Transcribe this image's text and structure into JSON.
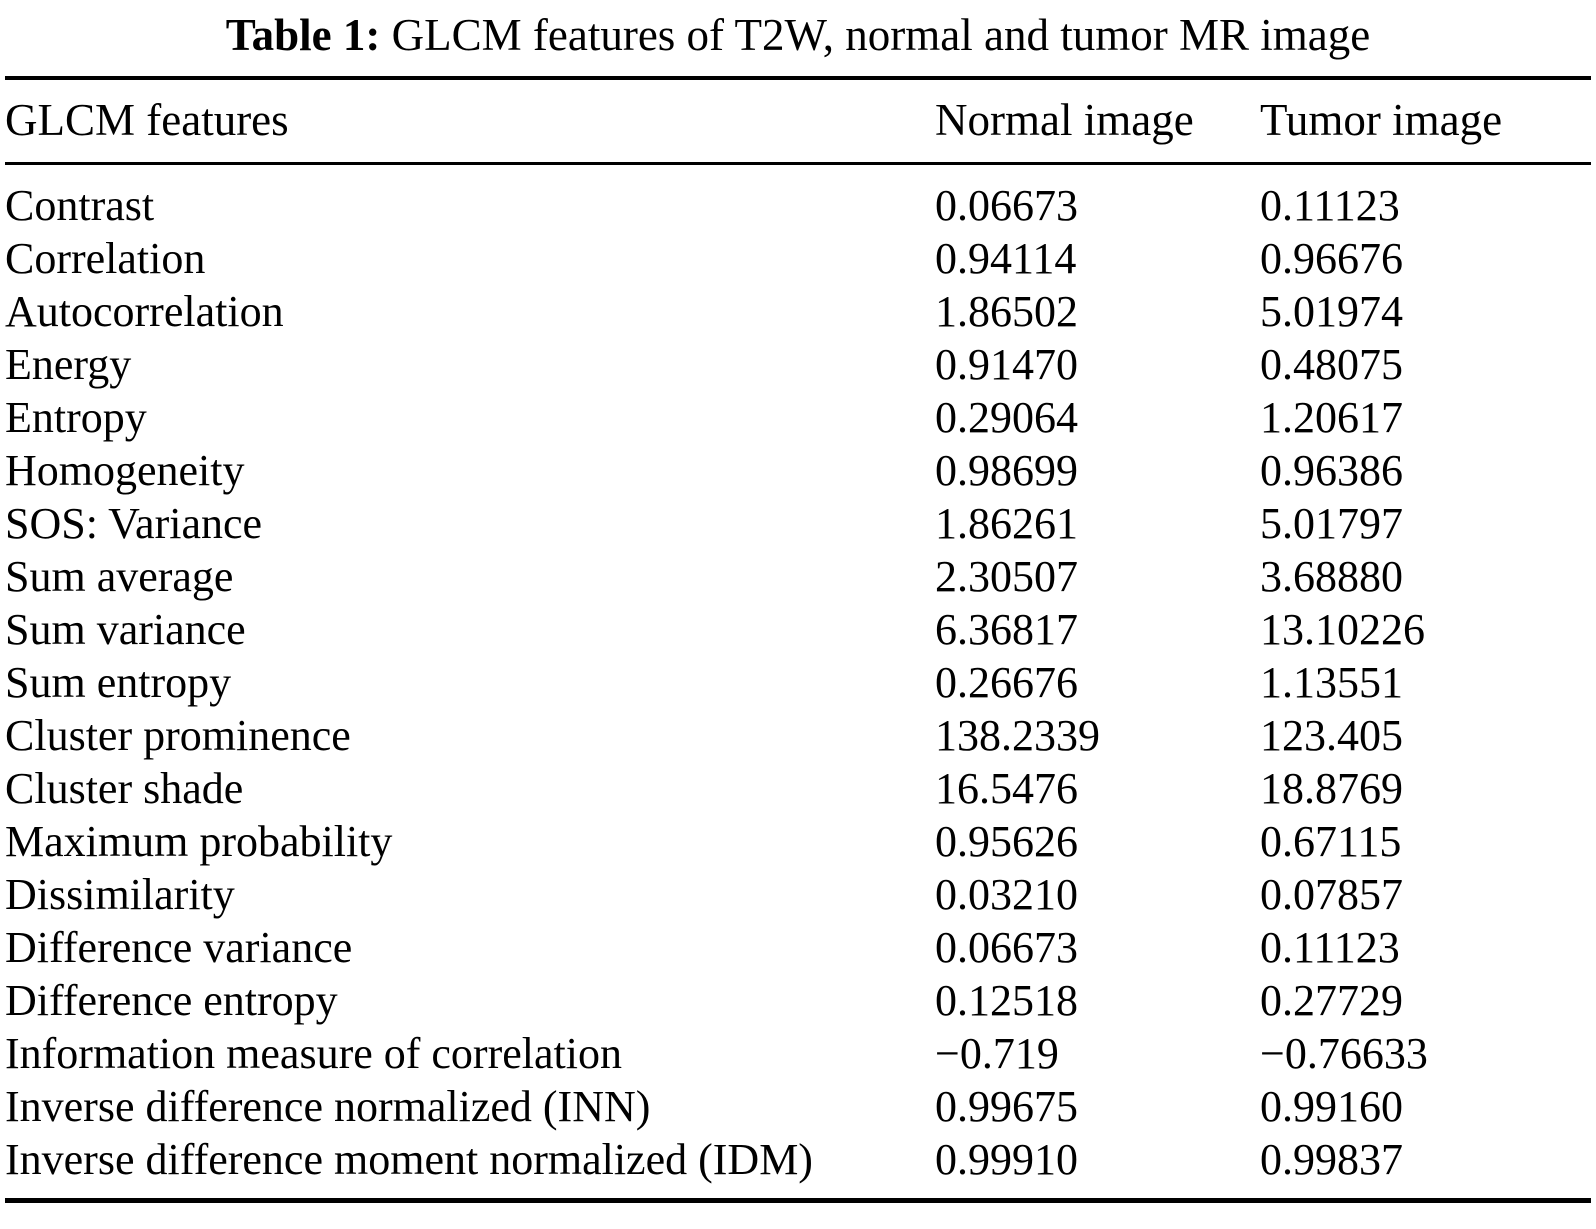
{
  "caption": {
    "label": "Table 1:",
    "text": " GLCM features of T2W, normal and tumor MR image"
  },
  "table": {
    "columns": {
      "feature": "GLCM features",
      "normal": "Normal image",
      "tumor": "Tumor image"
    },
    "rows": [
      {
        "feature": "Contrast",
        "normal": "0.06673",
        "tumor": "0.11123"
      },
      {
        "feature": "Correlation",
        "normal": "0.94114",
        "tumor": "0.96676"
      },
      {
        "feature": "Autocorrelation",
        "normal": "1.86502",
        "tumor": "5.01974"
      },
      {
        "feature": "Energy",
        "normal": "0.91470",
        "tumor": "0.48075"
      },
      {
        "feature": "Entropy",
        "normal": "0.29064",
        "tumor": "1.20617"
      },
      {
        "feature": "Homogeneity",
        "normal": "0.98699",
        "tumor": "0.96386"
      },
      {
        "feature": "SOS: Variance",
        "normal": "1.86261",
        "tumor": "5.01797"
      },
      {
        "feature": "Sum average",
        "normal": "2.30507",
        "tumor": "3.68880"
      },
      {
        "feature": "Sum variance",
        "normal": "6.36817",
        "tumor": "13.10226"
      },
      {
        "feature": "Sum entropy",
        "normal": "0.26676",
        "tumor": "1.13551"
      },
      {
        "feature": "Cluster prominence",
        "normal": "138.2339",
        "tumor": "123.405"
      },
      {
        "feature": "Cluster shade",
        "normal": "16.5476",
        "tumor": "18.8769"
      },
      {
        "feature": "Maximum probability",
        "normal": "0.95626",
        "tumor": "0.67115"
      },
      {
        "feature": "Dissimilarity",
        "normal": "0.03210",
        "tumor": "0.07857"
      },
      {
        "feature": "Difference variance",
        "normal": "0.06673",
        "tumor": "0.11123"
      },
      {
        "feature": "Difference entropy",
        "normal": "0.12518",
        "tumor": "0.27729"
      },
      {
        "feature": "Information measure of correlation",
        "normal": "−0.719",
        "tumor": "−0.76633"
      },
      {
        "feature": "Inverse difference normalized (INN)",
        "normal": "0.99675",
        "tumor": "0.99160"
      },
      {
        "feature": "Inverse difference moment normalized (IDM)",
        "normal": "0.99910",
        "tumor": "0.99837"
      }
    ]
  }
}
